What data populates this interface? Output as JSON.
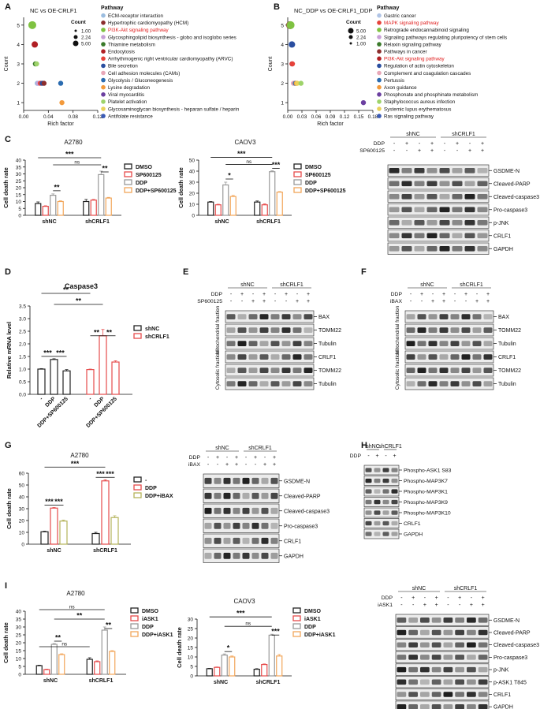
{
  "panels": {
    "A": {
      "letter": "A",
      "title": "NC vs OE-CRLF1",
      "ylabel": "Count",
      "xlabel": "Rich factor",
      "xticks": [
        "0.00",
        "0.04",
        "0.08",
        "0.12"
      ],
      "yticks": [
        "1",
        "2",
        "3",
        "4",
        "5"
      ],
      "size_legend_title": "Count",
      "size_legend": [
        "1.00",
        "2.24",
        "5.00"
      ],
      "pathway_title": "Pathway",
      "pathways": [
        {
          "name": "ECM-receptor interaction",
          "color": "#9bbde0",
          "highlight": false
        },
        {
          "name": "Hypertrophic cardiomyopathy (HCM)",
          "color": "#8c2d2d",
          "highlight": false
        },
        {
          "name": "PI3K-Akt signaling pathway",
          "color": "#7fc241",
          "highlight": true
        },
        {
          "name": "Glycosphingolipid biosynthesis - globo and isoglobo series",
          "color": "#c7a0d6",
          "highlight": false
        },
        {
          "name": "Thiamine metabolism",
          "color": "#3a7a2a",
          "highlight": false
        },
        {
          "name": "Endocytosis",
          "color": "#b01f24",
          "highlight": false
        },
        {
          "name": "Arrhythmogenic right ventricular cardiomyopathy (ARVC)",
          "color": "#e6423a",
          "highlight": false
        },
        {
          "name": "Bile secretion",
          "color": "#2a4ea0",
          "highlight": false
        },
        {
          "name": "Cell adhesion molecules (CAMs)",
          "color": "#e8a7b8",
          "highlight": false
        },
        {
          "name": "Glycolysis / Gluconeogenesis",
          "color": "#2b6cb0",
          "highlight": false
        },
        {
          "name": "Lysine degradation",
          "color": "#f39a3c",
          "highlight": false
        },
        {
          "name": "Viral myocarditis",
          "color": "#6b3fa0",
          "highlight": false
        },
        {
          "name": "Platelet activation",
          "color": "#9ed36a",
          "highlight": false
        },
        {
          "name": "Glycosaminoglycan biosynthesis - heparan sulfate / heparin",
          "color": "#e9d15a",
          "highlight": false
        },
        {
          "name": "Antifolate resistance",
          "color": "#3b5bb5",
          "highlight": false
        }
      ]
    },
    "B": {
      "letter": "B",
      "title": "NC_DDP vs OE-CRLF1_DDP",
      "ylabel": "Count",
      "xlabel": "Rich factor",
      "xticks": [
        "0.00",
        "0.03",
        "0.06",
        "0.09",
        "0.12",
        "0.15",
        "0.18"
      ],
      "yticks": [
        "1",
        "2",
        "3",
        "4",
        "5"
      ],
      "size_legend_title": "Count",
      "size_legend": [
        "5.00",
        "2.24",
        "1.00"
      ],
      "pathway_title": "Pathway",
      "pathways": [
        {
          "name": "Gastric cancer",
          "color": "#b0c4e6",
          "highlight": false
        },
        {
          "name": "MAPK signaling pathway",
          "color": "#e6423a",
          "highlight": true
        },
        {
          "name": "Retrograde endocannabinoid signaling",
          "color": "#7fc241",
          "highlight": false
        },
        {
          "name": "Signaling pathways regulating pluripotency of stem cells",
          "color": "#c7a0d6",
          "highlight": false
        },
        {
          "name": "Relaxin signaling pathway",
          "color": "#3a7a2a",
          "highlight": false
        },
        {
          "name": "Pathways in cancer",
          "color": "#8c2d2d",
          "highlight": false
        },
        {
          "name": "PI3K-Akt signaling pathway",
          "color": "#b01f24",
          "highlight": true
        },
        {
          "name": "Regulation of actin cytoskeleton",
          "color": "#2a4ea0",
          "highlight": false
        },
        {
          "name": "Complement and coagulation cascades",
          "color": "#e8a7b8",
          "highlight": false
        },
        {
          "name": "Pertussis",
          "color": "#2b6cb0",
          "highlight": false
        },
        {
          "name": "Axon guidance",
          "color": "#f39a3c",
          "highlight": false
        },
        {
          "name": "Phosphonate and phosphinate metabolism",
          "color": "#6b3fa0",
          "highlight": false
        },
        {
          "name": "Staphylococcus aureus infection",
          "color": "#9ed36a",
          "highlight": false
        },
        {
          "name": "Systemic lupus erythematosus",
          "color": "#e9d15a",
          "highlight": false
        },
        {
          "name": "Ras signaling pathway",
          "color": "#3b5bb5",
          "highlight": false
        }
      ]
    },
    "C": {
      "letter": "C"
    },
    "D": {
      "letter": "D"
    },
    "E": {
      "letter": "E"
    },
    "F": {
      "letter": "F"
    },
    "G": {
      "letter": "G"
    },
    "H": {
      "letter": "H"
    },
    "I": {
      "letter": "I"
    }
  },
  "bar_charts": [
    {
      "id": "C-A2780",
      "title": "A2780",
      "ylabel": "Cell death rate",
      "yticks": [
        "0",
        "5",
        "10",
        "15",
        "20",
        "25",
        "30",
        "35",
        "40"
      ],
      "ylim": [
        0,
        40
      ],
      "groups": [
        "shNC",
        "shCRLF1"
      ],
      "legend": [
        "DMSO",
        "SP600125",
        "DDP",
        "DDP+SP600125"
      ],
      "colors": [
        "#222222",
        "#e64b4b",
        "#999999",
        "#f2a65a"
      ],
      "values": [
        [
          8.5,
          6.5,
          14.5,
          10
        ],
        [
          10,
          11,
          29.5,
          12.5
        ]
      ],
      "errors": [
        [
          1.2,
          0.4,
          1.0,
          0.5
        ],
        [
          1.5,
          0.5,
          2.5,
          0.5
        ]
      ],
      "sig": [
        "**",
        "ns",
        "***",
        "**"
      ]
    },
    {
      "id": "C-CAOV3",
      "title": "CAOV3",
      "ylabel": "Cell death rate",
      "yticks": [
        "0",
        "10",
        "20",
        "30",
        "40",
        "50"
      ],
      "ylim": [
        0,
        50
      ],
      "groups": [
        "shNC",
        "shCRLF1"
      ],
      "legend": [
        "DMSO",
        "SP600125",
        "DDP",
        "DDP+SP600125"
      ],
      "colors": [
        "#222222",
        "#e64b4b",
        "#999999",
        "#f2a65a"
      ],
      "values": [
        [
          12,
          9.5,
          27.5,
          17
        ],
        [
          12,
          9.5,
          39.5,
          21
        ]
      ],
      "errors": [
        [
          0.5,
          0.5,
          2.5,
          1.0
        ],
        [
          1.0,
          0.8,
          0.8,
          0.5
        ]
      ],
      "sig": [
        "*",
        "ns",
        "***",
        "***"
      ]
    },
    {
      "id": "D-Caspase3",
      "title": "Caspase3",
      "ylabel": "Relative mRNA level",
      "yticks": [
        "0.0",
        "0.5",
        "1.0",
        "1.5",
        "2.0",
        "2.5",
        "3.0",
        "3.5"
      ],
      "ylim": [
        0,
        3.5
      ],
      "categories": [
        "-",
        "DDP",
        "DDP+SP600125",
        "-",
        "DDP",
        "DDP+SP600125"
      ],
      "legend": [
        "shNC",
        "shCRLF1"
      ],
      "colors": [
        "#222222",
        "#e64b4b"
      ],
      "values": [
        1.0,
        1.38,
        0.93,
        0.98,
        2.32,
        1.28
      ],
      "errors": [
        0.02,
        0.03,
        0.05,
        0.02,
        0.25,
        0.05
      ],
      "sig": [
        "***",
        "***",
        "**",
        "**",
        "**",
        "**"
      ]
    },
    {
      "id": "G-A2780",
      "title": "A2780",
      "ylabel": "Cell death rate",
      "yticks": [
        "0",
        "10",
        "20",
        "30",
        "40",
        "50",
        "60"
      ],
      "ylim": [
        0,
        60
      ],
      "groups": [
        "shNC",
        "shCRLF1"
      ],
      "legend": [
        "-",
        "DDP",
        "DDP+iBAX"
      ],
      "colors": [
        "#222222",
        "#e64b4b",
        "#b5b35a"
      ],
      "values": [
        [
          10.5,
          30.5,
          19.5
        ],
        [
          9,
          53.5,
          22.5
        ]
      ],
      "errors": [
        [
          0.5,
          0.5,
          0.8
        ],
        [
          1.0,
          1.0,
          1.5
        ]
      ],
      "sig": [
        "***",
        "***",
        "***",
        "***",
        "***"
      ]
    },
    {
      "id": "I-A2780",
      "title": "A2780",
      "ylabel": "Cell death rate",
      "yticks": [
        "0",
        "5",
        "10",
        "15",
        "20",
        "25",
        "30",
        "35",
        "40"
      ],
      "ylim": [
        0,
        40
      ],
      "groups": [
        "shNC",
        "shCRLF1"
      ],
      "legend": [
        "DMSO",
        "iASK1",
        "DDP",
        "DDP+iASK1"
      ],
      "colors": [
        "#222222",
        "#e64b4b",
        "#999999",
        "#f2a65a"
      ],
      "values": [
        [
          5.5,
          3,
          19,
          12.5
        ],
        [
          9.5,
          8,
          28,
          14.5
        ]
      ],
      "errors": [
        [
          0.3,
          0.3,
          0.5,
          0.5
        ],
        [
          1.0,
          0.5,
          2.0,
          0.5
        ]
      ],
      "sig": [
        "**",
        "ns",
        "**",
        "ns",
        "**"
      ]
    },
    {
      "id": "I-CAOV3",
      "title": "CAOV3",
      "ylabel": "Cell death rate",
      "yticks": [
        "0",
        "5",
        "10",
        "15",
        "20",
        "25",
        "30"
      ],
      "ylim": [
        0,
        30
      ],
      "groups": [
        "shNC",
        "shCRLF1"
      ],
      "legend": [
        "DMSO",
        "iASK1",
        "DDP",
        "DDP+iASK1"
      ],
      "colors": [
        "#222222",
        "#e64b4b",
        "#999999",
        "#f2a65a"
      ],
      "values": [
        [
          3.8,
          4.5,
          11,
          10
        ],
        [
          3.5,
          6,
          21.5,
          10.5
        ]
      ],
      "errors": [
        [
          0.2,
          0.2,
          0.6,
          0.5
        ],
        [
          0.3,
          0.3,
          0.5,
          0.8
        ]
      ],
      "sig": [
        "*",
        "ns",
        "***",
        "***"
      ]
    }
  ],
  "blots": [
    {
      "id": "C-blot",
      "groups": [
        "shNC",
        "shCRLF1"
      ],
      "treat_rows": [
        {
          "label": "DDP",
          "signs": [
            "-",
            "+",
            "-",
            "+",
            "-",
            "+",
            "-",
            "+"
          ]
        },
        {
          "label": "SP600125",
          "signs": [
            "-",
            "-",
            "+",
            "+",
            "-",
            "-",
            "+",
            "+"
          ]
        }
      ],
      "bands": [
        "GSDME-N",
        "Cleaved-PARP",
        "Cleaved-caspase3",
        "Pro-caspase3",
        "p-JNK",
        "CRLF1",
        "GAPDH"
      ]
    },
    {
      "id": "E-blot",
      "groups": [
        "shNC",
        "shCRLF1"
      ],
      "treat_rows": [
        {
          "label": "DDP",
          "signs": [
            "-",
            "+",
            "-",
            "+",
            "-",
            "+",
            "-",
            "+"
          ]
        },
        {
          "label": "SP600125",
          "signs": [
            "-",
            "-",
            "+",
            "+",
            "-",
            "-",
            "+",
            "+"
          ]
        }
      ],
      "fraction_labels": [
        "Mitochondrial fraction",
        "Cytosolic fraction"
      ],
      "bands": [
        "BAX",
        "TOMM22",
        "Tubulin",
        "CRLF1",
        "TOMM22",
        "Tubulin"
      ]
    },
    {
      "id": "F-blot",
      "groups": [
        "shNC",
        "shCRLF1"
      ],
      "treat_rows": [
        {
          "label": "DDP",
          "signs": [
            "-",
            "+",
            "-",
            "+",
            "-",
            "+",
            "-",
            "+"
          ]
        },
        {
          "label": "iBAX",
          "signs": [
            "-",
            "-",
            "+",
            "+",
            "-",
            "-",
            "+",
            "+"
          ]
        }
      ],
      "fraction_labels": [
        "Mitochondrial fraction",
        "Cytosolic fraction"
      ],
      "bands": [
        "BAX",
        "TOMM22",
        "Tubulin",
        "CRLF1",
        "TOMM22",
        "Tubulin"
      ]
    },
    {
      "id": "G-blot",
      "groups": [
        "shNC",
        "shCRLF1"
      ],
      "treat_rows": [
        {
          "label": "DDP",
          "signs": [
            "-",
            "+",
            "-",
            "+",
            "-",
            "+",
            "-",
            "+"
          ]
        },
        {
          "label": "iBAX",
          "signs": [
            "-",
            "-",
            "+",
            "+",
            "-",
            "-",
            "+",
            "+"
          ]
        }
      ],
      "bands": [
        "GSDME-N",
        "Cleaved-PARP",
        "Cleaved-caspase3",
        "Pro-caspase3",
        "CRLF1",
        "GAPDH"
      ]
    },
    {
      "id": "H-blot",
      "groups": [
        "shNC",
        "shCRLF1"
      ],
      "treat_rows": [
        {
          "label": "DDP",
          "signs": [
            "-",
            "+",
            "-",
            "+"
          ]
        }
      ],
      "bands": [
        "Phospho-ASK1 S83",
        "Phospho-MAP3K7",
        "Phospho-MAP3K1",
        "Phospho-MAP3K9",
        "Phospho-MAP3K10",
        "CRLF1",
        "GAPDH"
      ]
    },
    {
      "id": "I-blot",
      "groups": [
        "shNC",
        "shCRLF1"
      ],
      "treat_rows": [
        {
          "label": "DDP",
          "signs": [
            "-",
            "+",
            "-",
            "+",
            "-",
            "+",
            "-",
            "+"
          ]
        },
        {
          "label": "iASK1",
          "signs": [
            "-",
            "-",
            "+",
            "+",
            "-",
            "-",
            "+",
            "+"
          ]
        }
      ],
      "bands": [
        "GSDME-N",
        "Cleaved-PARP",
        "Cleaved-caspase3",
        "Pro-caspase3",
        "p-JNK",
        "p-ASK1 T845",
        "CRLF1",
        "GAPDH"
      ]
    }
  ]
}
